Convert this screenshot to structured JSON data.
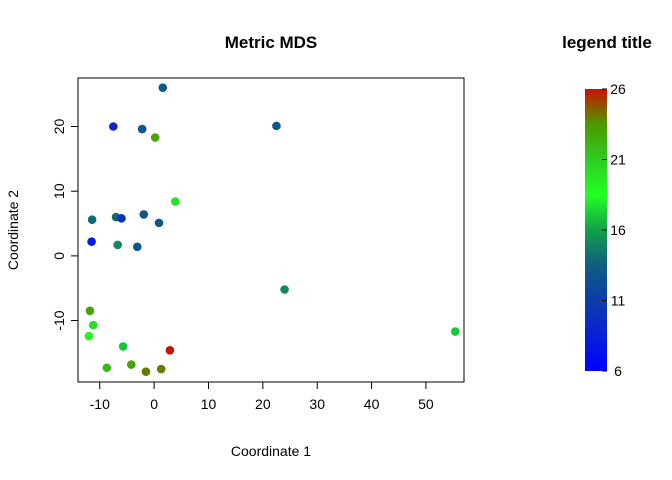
{
  "chart_data": {
    "type": "scatter",
    "title": "Metric  MDS",
    "xlabel": "Coordinate 1",
    "ylabel": "Coordinate 2",
    "xlim": [
      -14,
      57
    ],
    "ylim": [
      -19.5,
      27.5
    ],
    "xticks": [
      -10,
      0,
      10,
      20,
      30,
      40,
      50
    ],
    "yticks": [
      -10,
      0,
      10,
      20
    ],
    "grid": false,
    "points": [
      {
        "x": 1.6,
        "y": 26.0,
        "value": 13
      },
      {
        "x": -7.5,
        "y": 20.0,
        "value": 9
      },
      {
        "x": -2.2,
        "y": 19.6,
        "value": 13
      },
      {
        "x": 0.2,
        "y": 18.3,
        "value": 23
      },
      {
        "x": 22.5,
        "y": 20.1,
        "value": 13
      },
      {
        "x": 3.9,
        "y": 8.4,
        "value": 20
      },
      {
        "x": -11.4,
        "y": 5.6,
        "value": 14
      },
      {
        "x": -7.0,
        "y": 6.0,
        "value": 14
      },
      {
        "x": -6.0,
        "y": 5.8,
        "value": 10
      },
      {
        "x": -1.9,
        "y": 6.4,
        "value": 13
      },
      {
        "x": 0.9,
        "y": 5.1,
        "value": 13
      },
      {
        "x": -11.5,
        "y": 2.2,
        "value": 8
      },
      {
        "x": -6.7,
        "y": 1.7,
        "value": 15
      },
      {
        "x": -3.1,
        "y": 1.4,
        "value": 13
      },
      {
        "x": 24.0,
        "y": -5.2,
        "value": 15
      },
      {
        "x": 55.4,
        "y": -11.7,
        "value": 17
      },
      {
        "x": -11.8,
        "y": -8.5,
        "value": 23
      },
      {
        "x": -11.2,
        "y": -10.7,
        "value": 20
      },
      {
        "x": -12.0,
        "y": -12.4,
        "value": 19
      },
      {
        "x": -5.7,
        "y": -14.0,
        "value": 17
      },
      {
        "x": 2.9,
        "y": -14.6,
        "value": 26
      },
      {
        "x": -8.7,
        "y": -17.3,
        "value": 22
      },
      {
        "x": -4.2,
        "y": -16.8,
        "value": 23
      },
      {
        "x": -1.5,
        "y": -17.9,
        "value": 24
      },
      {
        "x": 1.3,
        "y": -17.5,
        "value": 24
      }
    ],
    "legend": {
      "title": "legend title",
      "placement": "right",
      "min": 6,
      "max": 26,
      "ticks": [
        6,
        11,
        16,
        21,
        26
      ],
      "colors": [
        "#0000ff",
        "#0a20d8",
        "#0b3da8",
        "#0f5e80",
        "#13a04a",
        "#22ff22",
        "#2ecc22",
        "#4d9900",
        "#cc1100"
      ]
    }
  }
}
